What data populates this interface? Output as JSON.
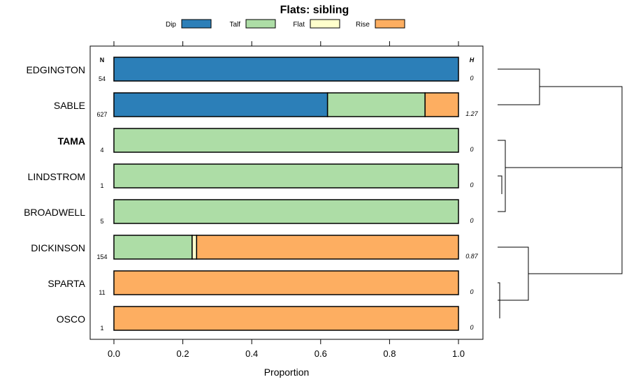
{
  "chart_data": {
    "type": "bar",
    "orientation": "horizontal",
    "stacked": true,
    "title": "Flats: sibling",
    "xlabel": "Proportion",
    "ylabel": "",
    "xlim": [
      0,
      1
    ],
    "x_ticks": [
      "0.0",
      "0.2",
      "0.4",
      "0.6",
      "0.8",
      "1.0"
    ],
    "x_tick_values": [
      0,
      0.2,
      0.4,
      0.6,
      0.8,
      1.0
    ],
    "legend_position": "top",
    "legend": [
      {
        "name": "Dip",
        "color": "#2c7fb8"
      },
      {
        "name": "Talf",
        "color": "#addda6"
      },
      {
        "name": "Flat",
        "color": "#ffffcc"
      },
      {
        "name": "Rise",
        "color": "#fdae61"
      }
    ],
    "n_header": "N",
    "h_header": "H",
    "categories": [
      "EDGINGTON",
      "SABLE",
      "TAMA",
      "LINDSTROM",
      "BROADWELL",
      "DICKINSON",
      "SPARTA",
      "OSCO"
    ],
    "bold_category": "TAMA",
    "series": [
      {
        "name": "Dip",
        "values": [
          1.0,
          0.62,
          0,
          0,
          0,
          0,
          0,
          0
        ]
      },
      {
        "name": "Talf",
        "values": [
          0,
          0.283,
          1.0,
          1.0,
          1.0,
          0.227,
          0,
          0
        ]
      },
      {
        "name": "Flat",
        "values": [
          0,
          0,
          0,
          0,
          0,
          0.013,
          0,
          0
        ]
      },
      {
        "name": "Rise",
        "values": [
          0,
          0.097,
          0,
          0,
          0,
          0.76,
          1.0,
          1.0
        ]
      }
    ],
    "n_values": [
      "54",
      "627",
      "4",
      "1",
      "5",
      "154",
      "11",
      "1"
    ],
    "h_values": [
      "0",
      "1.27",
      "0",
      "0",
      "0",
      "0.87",
      "0",
      "0"
    ],
    "dendrogram": "hierarchical clustering of rows shown at right"
  }
}
